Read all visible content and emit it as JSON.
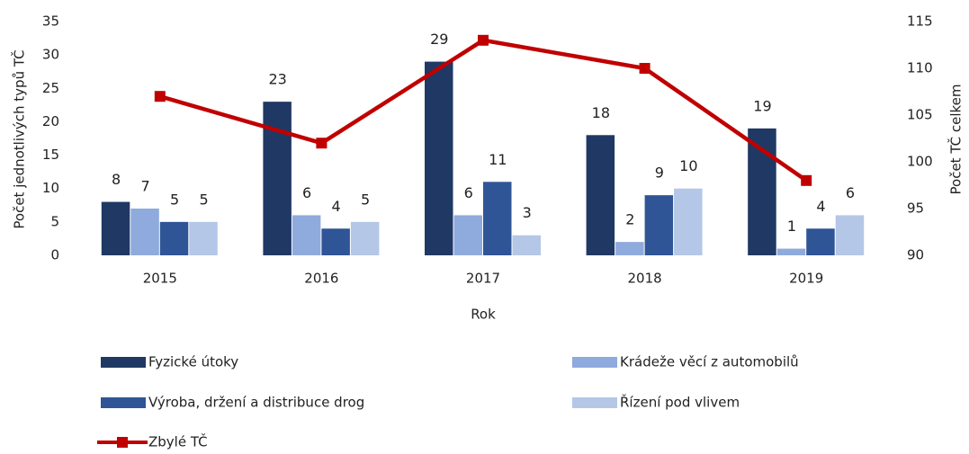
{
  "chart_data": {
    "type": "bar",
    "categories": [
      "2015",
      "2016",
      "2017",
      "2018",
      "2019"
    ],
    "x_label": "Rok",
    "y_label": "Počet jednotlivých typů TČ",
    "y2_label": "Počet TČ celkem",
    "ylim": [
      0,
      35
    ],
    "yticks": [
      0,
      5,
      10,
      15,
      20,
      25,
      30,
      35
    ],
    "y2lim": [
      90,
      115
    ],
    "y2ticks": [
      90,
      95,
      100,
      105,
      110,
      115
    ],
    "grid": false,
    "series": [
      {
        "name": "Fyzické útoky",
        "color": "#203864",
        "values": [
          8,
          23,
          29,
          18,
          19
        ]
      },
      {
        "name": "Krádeže věcí z automobilů",
        "color": "#8faadc",
        "values": [
          7,
          6,
          6,
          2,
          1
        ]
      },
      {
        "name": "Výroba, držení a distribuce drog",
        "color": "#2f5597",
        "values": [
          5,
          4,
          11,
          9,
          4
        ]
      },
      {
        "name": "Řízení pod vlivem",
        "color": "#b4c7e7",
        "values": [
          5,
          5,
          3,
          10,
          6
        ]
      },
      {
        "name": "Zbylé TČ",
        "color": "#c00000",
        "type": "line",
        "axis": "y2",
        "values": [
          107,
          102,
          113,
          110,
          98
        ]
      }
    ]
  }
}
